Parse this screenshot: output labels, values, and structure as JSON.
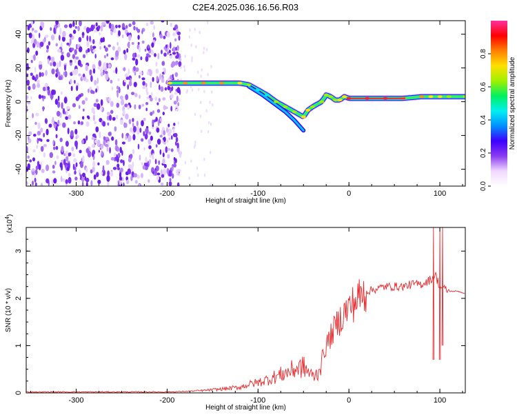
{
  "title": "C2E4.2025.036.16.56.R03",
  "colors": {
    "snr_line": "#e8262a",
    "scatter_point": "#7b2ff0",
    "axis": "#000000"
  },
  "chart_data": [
    {
      "type": "heatmap",
      "name": "spectrogram",
      "xlabel": "Height of straight line (km)",
      "ylabel": "Frequency (Hz)",
      "xlim": [
        -355,
        128
      ],
      "ylim": [
        -50,
        48
      ],
      "xticks": [
        -300,
        -200,
        -100,
        0,
        100
      ],
      "yticks": [
        -40,
        -20,
        0,
        20,
        40
      ],
      "colorbar": {
        "label": "Normalized spectral amplitude",
        "range": [
          0,
          1
        ],
        "ticks": [
          0.0,
          0.2,
          0.4,
          0.6,
          0.8
        ],
        "colormap": [
          "#ffffff",
          "#f0d8ff",
          "#8a3cf0",
          "#3c00ff",
          "#0090ff",
          "#00f0f0",
          "#00f060",
          "#a0f000",
          "#ffe000",
          "#ff8000",
          "#ff0000",
          "#ff30a0"
        ]
      },
      "noise_region": {
        "x_range": [
          -355,
          -185
        ],
        "freq_range": [
          -50,
          48
        ]
      },
      "signal_track": {
        "x": [
          -197,
          -180,
          -160,
          -140,
          -120,
          -110,
          -100,
          -90,
          -80,
          -70,
          -60,
          -50,
          -45,
          -40,
          -30,
          -25,
          -20,
          -15,
          -10,
          -5,
          0,
          20,
          40,
          60,
          80,
          90,
          100,
          110,
          128
        ],
        "freq": [
          11,
          11,
          11,
          11,
          11,
          10,
          7,
          4,
          0,
          -3,
          -6,
          -9,
          -5,
          -3,
          0,
          4,
          3,
          1,
          1,
          3,
          2,
          2,
          2,
          2,
          3,
          3,
          3,
          3,
          3
        ],
        "amplitude": [
          0.6,
          0.65,
          0.7,
          0.7,
          0.6,
          0.45,
          0.35,
          0.4,
          0.45,
          0.45,
          0.5,
          0.6,
          0.55,
          0.5,
          0.5,
          0.45,
          0.45,
          0.5,
          0.55,
          0.6,
          0.85,
          0.9,
          0.9,
          0.8,
          0.7,
          0.6,
          0.6,
          0.5,
          0.45
        ]
      }
    },
    {
      "type": "line",
      "name": "snr",
      "xlabel": "Height of straight line (km)",
      "ylabel": "SNR (10 * v/v)",
      "y_multiplier": "(x10",
      "y_multiplier_exp": "4",
      "y_multiplier_close": ")",
      "xlim": [
        -355,
        128
      ],
      "ylim": [
        0,
        3.5
      ],
      "xticks": [
        -300,
        -200,
        -100,
        0,
        100
      ],
      "yticks": [
        0,
        1,
        2,
        3
      ],
      "x": [
        -355,
        -300,
        -250,
        -200,
        -180,
        -160,
        -140,
        -120,
        -110,
        -100,
        -90,
        -80,
        -70,
        -60,
        -50,
        -45,
        -40,
        -35,
        -30,
        -25,
        -20,
        -15,
        -10,
        -5,
        0,
        5,
        10,
        20,
        30,
        40,
        50,
        60,
        70,
        80,
        85,
        90,
        95,
        100,
        105,
        110,
        120,
        128
      ],
      "y": [
        0.02,
        0.02,
        0.02,
        0.02,
        0.03,
        0.05,
        0.08,
        0.12,
        0.18,
        0.22,
        0.28,
        0.35,
        0.42,
        0.5,
        0.55,
        0.45,
        0.35,
        0.4,
        0.7,
        1.0,
        1.2,
        1.4,
        1.55,
        1.7,
        1.8,
        1.9,
        2.0,
        2.15,
        2.2,
        2.25,
        2.25,
        2.25,
        2.3,
        2.3,
        2.35,
        2.4,
        2.5,
        2.25,
        2.2,
        2.15,
        2.15,
        2.1
      ],
      "spikes": [
        {
          "x": 93,
          "y": 3.5,
          "low": 0.7
        },
        {
          "x": 100,
          "y": 3.5,
          "low": 0.7
        },
        {
          "x": 103,
          "y": 3.5,
          "low": 1.0
        }
      ]
    }
  ]
}
